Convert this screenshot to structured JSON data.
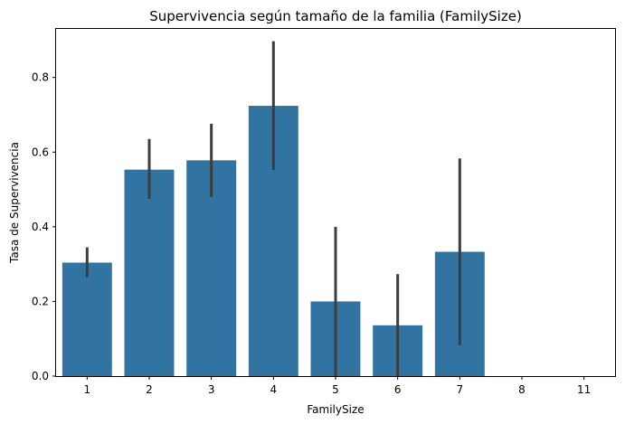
{
  "chart_data": {
    "type": "bar",
    "title": "Supervivencia según tamaño de la familia (FamilySize)",
    "xlabel": "FamilySize",
    "ylabel": "Tasa de Supervivencia",
    "categories": [
      "1",
      "2",
      "3",
      "4",
      "5",
      "6",
      "7",
      "8",
      "11"
    ],
    "values": [
      0.304,
      0.553,
      0.578,
      0.724,
      0.2,
      0.136,
      0.333,
      0.0,
      0.0
    ],
    "error_low": [
      0.265,
      0.475,
      0.48,
      0.552,
      0.0,
      0.0,
      0.083,
      0.0,
      0.0
    ],
    "error_high": [
      0.345,
      0.635,
      0.676,
      0.897,
      0.4,
      0.273,
      0.583,
      0.0,
      0.0
    ],
    "ylim": [
      0,
      0.93
    ],
    "yticks": [
      "0.0",
      "0.2",
      "0.4",
      "0.6",
      "0.8"
    ],
    "ytick_values": [
      0.0,
      0.2,
      0.4,
      0.6,
      0.8
    ],
    "grid": false,
    "colors": {
      "bar": "#3274a1",
      "errorbar": "#3d3d3d"
    }
  }
}
